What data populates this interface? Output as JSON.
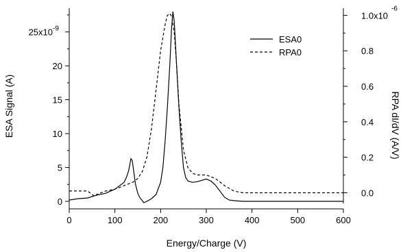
{
  "chart_data": {
    "type": "line",
    "xlabel": "Energy/Charge (V)",
    "ylabel": "ESA Signal (A)",
    "y2label": "RPA dI/dV (A/V)",
    "xlim": [
      0,
      600
    ],
    "ylim": [
      -0.3,
      28.5
    ],
    "y2lim": [
      -0.06,
      1.04
    ],
    "grid": false,
    "legend_position": "top-right",
    "x_ticks": [
      "0",
      "100",
      "200",
      "300",
      "400",
      "500",
      "600"
    ],
    "y_ticks": [
      {
        "value": 0,
        "label": "0"
      },
      {
        "value": 5,
        "label": "5"
      },
      {
        "value": 10,
        "label": "10"
      },
      {
        "value": 15,
        "label": "15"
      },
      {
        "value": 20,
        "label": "20"
      },
      {
        "value": 25,
        "label": "25x10"
      }
    ],
    "y_tick_exponent": "-9",
    "y2_ticks": [
      {
        "value": 0.0,
        "label": "0.0"
      },
      {
        "value": 0.2,
        "label": "0.2"
      },
      {
        "value": 0.4,
        "label": "0.4"
      },
      {
        "value": 0.6,
        "label": "0.6"
      },
      {
        "value": 0.8,
        "label": "0.8"
      },
      {
        "value": 1.0,
        "label": "1.0x10"
      }
    ],
    "y2_tick_exponent": "-6",
    "series": [
      {
        "name": "ESA0",
        "axis": "left",
        "style": "solid",
        "color": "#000000",
        "x": [
          0,
          20,
          40,
          60,
          80,
          100,
          110,
          120,
          125,
          130,
          135,
          138,
          142,
          145,
          150,
          155,
          160,
          163,
          170,
          180,
          190,
          200,
          205,
          210,
          215,
          220,
          224,
          227,
          230,
          235,
          240,
          245,
          250,
          255,
          260,
          270,
          280,
          290,
          300,
          310,
          320,
          330,
          340,
          350,
          360,
          380,
          400,
          450,
          500,
          550,
          600
        ],
        "y": [
          0.2,
          0.4,
          0.5,
          0.9,
          1.2,
          1.8,
          2.3,
          2.8,
          3.5,
          4.5,
          6.3,
          6.0,
          4.0,
          2.5,
          1.2,
          0.5,
          0.1,
          -0.2,
          0.0,
          0.4,
          1.0,
          2.8,
          5.0,
          9.0,
          14.0,
          20.0,
          25.5,
          28.0,
          26.5,
          20.0,
          14.0,
          9.0,
          5.0,
          3.5,
          3.0,
          2.8,
          2.9,
          3.1,
          3.3,
          3.0,
          2.4,
          1.5,
          0.6,
          0.2,
          0.1,
          0.0,
          0.0,
          0.0,
          0.0,
          0.0,
          0.0
        ]
      },
      {
        "name": "RPA0",
        "axis": "right",
        "style": "dashed",
        "color": "#000000",
        "x": [
          0,
          20,
          40,
          50,
          55,
          60,
          80,
          100,
          120,
          140,
          150,
          160,
          170,
          180,
          190,
          200,
          210,
          215,
          220,
          225,
          230,
          235,
          240,
          250,
          260,
          270,
          280,
          300,
          320,
          340,
          360,
          380,
          400,
          450,
          500,
          550,
          600
        ],
        "y": [
          0.01,
          0.01,
          0.01,
          -0.01,
          -0.02,
          -0.01,
          0.01,
          0.02,
          0.04,
          0.06,
          0.08,
          0.12,
          0.2,
          0.36,
          0.58,
          0.8,
          0.95,
          1.0,
          1.01,
          0.99,
          0.9,
          0.72,
          0.5,
          0.24,
          0.14,
          0.11,
          0.1,
          0.1,
          0.08,
          0.04,
          0.01,
          0.0,
          0.0,
          0.0,
          0.0,
          0.0,
          0.0
        ]
      }
    ]
  }
}
